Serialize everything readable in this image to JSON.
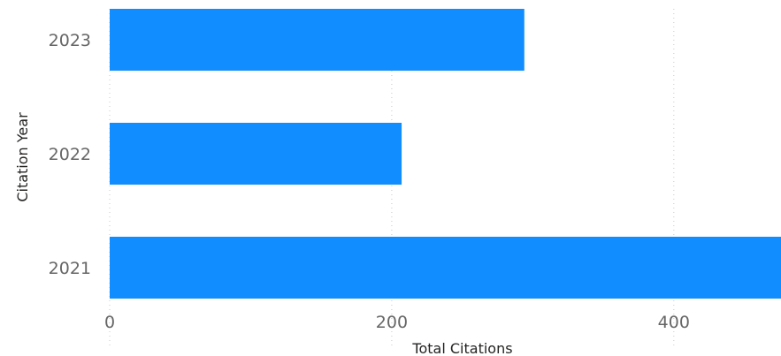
{
  "chart_data": {
    "type": "bar",
    "orientation": "horizontal",
    "categories": [
      "2023",
      "2022",
      "2021"
    ],
    "values": [
      294,
      207,
      480
    ],
    "xlabel": "Total Citations",
    "ylabel": "Citation Year",
    "xlim": [
      0,
      476
    ],
    "xticks": [
      "0",
      "200",
      "400"
    ],
    "grid": true,
    "bar_color": "#118dff",
    "legend": "none"
  }
}
